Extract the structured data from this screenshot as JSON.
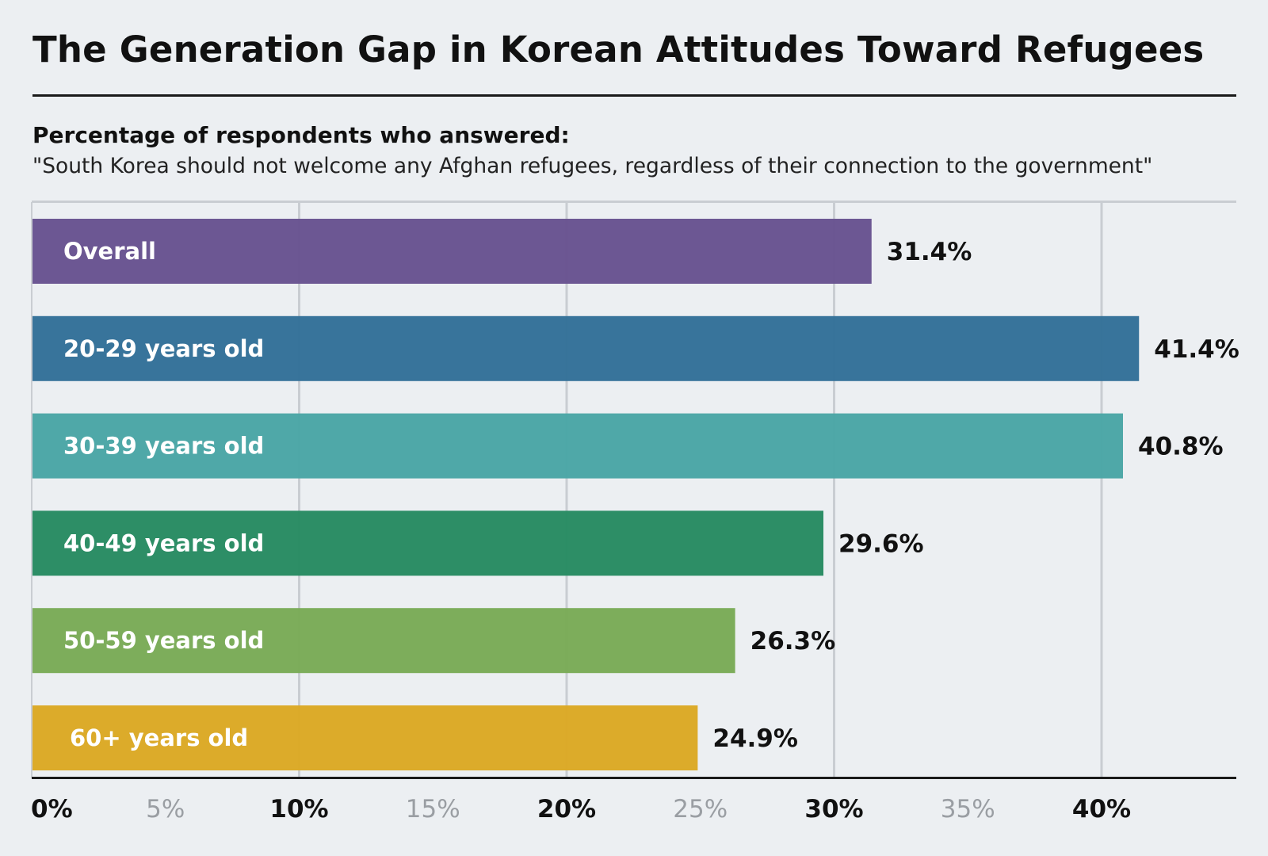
{
  "page": {
    "title": "The Generation Gap in Korean Attitudes Toward Refugees",
    "subtitle_strong": "Percentage of respondents who answered:",
    "subtitle_quote": "\"South Korea should not welcome any Afghan refugees, regardless of their connection to the government\""
  },
  "colors": {
    "background": "#ECEFF2",
    "grid": "#C9CDD2",
    "axis": "#1a1a1a",
    "tick_major": "#111111",
    "tick_minor": "#9A9EA3",
    "bar_label": "#FFFFFF",
    "value_label": "#111111"
  },
  "chart_data": {
    "type": "bar",
    "orientation": "horizontal",
    "title": "The Generation Gap in Korean Attitudes Toward Refugees",
    "subtitle": "Percentage of respondents who answered: \"South Korea should not welcome any Afghan refugees, regardless of their connection to the government\"",
    "xlabel": "",
    "ylabel": "",
    "xlim": [
      0,
      45
    ],
    "grid": true,
    "categories": [
      "Overall",
      "20-29 years old",
      "30-39 years old",
      "40-49 years old",
      "50-59 years old",
      "60+ years old"
    ],
    "values": [
      31.4,
      41.4,
      40.8,
      29.6,
      26.3,
      24.9
    ],
    "value_labels": [
      "31.4%",
      "41.4%",
      "40.8%",
      "29.6%",
      "26.3%",
      "24.9%"
    ],
    "bar_colors": [
      "#67528F",
      "#327098",
      "#49A5A5",
      "#268A61",
      "#79AA56",
      "#DBA823"
    ],
    "ticks": [
      {
        "value": 0,
        "label": "0%",
        "major": true
      },
      {
        "value": 5,
        "label": "5%",
        "major": false
      },
      {
        "value": 10,
        "label": "10%",
        "major": true
      },
      {
        "value": 15,
        "label": "15%",
        "major": false
      },
      {
        "value": 20,
        "label": "20%",
        "major": true
      },
      {
        "value": 25,
        "label": "25%",
        "major": false
      },
      {
        "value": 30,
        "label": "30%",
        "major": true
      },
      {
        "value": 35,
        "label": "35%",
        "major": false
      },
      {
        "value": 40,
        "label": "40%",
        "major": true
      }
    ]
  }
}
